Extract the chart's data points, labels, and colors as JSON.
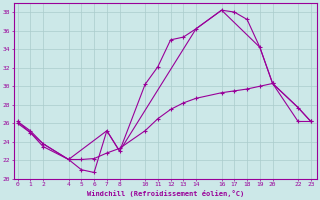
{
  "xlabel": "Windchill (Refroidissement éolien,°C)",
  "background_color": "#cce8e8",
  "grid_color": "#aacccc",
  "line_color": "#990099",
  "x_ticks": [
    0,
    1,
    2,
    4,
    5,
    6,
    7,
    8,
    10,
    11,
    12,
    13,
    14,
    16,
    17,
    18,
    19,
    20,
    22,
    23
  ],
  "line1_x": [
    0,
    1,
    2,
    4,
    5,
    6,
    7,
    8,
    10,
    11,
    12,
    13,
    14,
    16,
    17,
    18,
    19,
    20,
    22,
    23
  ],
  "line1_y": [
    26.2,
    25.2,
    23.8,
    22.1,
    21.0,
    20.7,
    25.2,
    23.0,
    30.2,
    32.1,
    35.0,
    35.3,
    36.2,
    38.2,
    38.0,
    37.2,
    34.2,
    30.3,
    27.7,
    26.2
  ],
  "line2_x": [
    0,
    2,
    4,
    7,
    8,
    14,
    16,
    19,
    20,
    22,
    23
  ],
  "line2_y": [
    26.2,
    23.8,
    22.1,
    25.2,
    23.0,
    36.2,
    38.2,
    34.2,
    30.3,
    27.7,
    26.2
  ],
  "line3_x": [
    0,
    1,
    2,
    4,
    5,
    6,
    7,
    8,
    10,
    11,
    12,
    13,
    14,
    16,
    17,
    18,
    19,
    20,
    22,
    23
  ],
  "line3_y": [
    26.0,
    25.0,
    23.5,
    22.1,
    22.1,
    22.2,
    22.8,
    23.3,
    25.2,
    26.5,
    27.5,
    28.2,
    28.7,
    29.3,
    29.5,
    29.7,
    30.0,
    30.3,
    26.2,
    26.2
  ],
  "ylim": [
    20,
    39
  ],
  "xlim": [
    -0.3,
    23.5
  ],
  "yticks": [
    20,
    22,
    24,
    26,
    28,
    30,
    32,
    34,
    36,
    38
  ]
}
